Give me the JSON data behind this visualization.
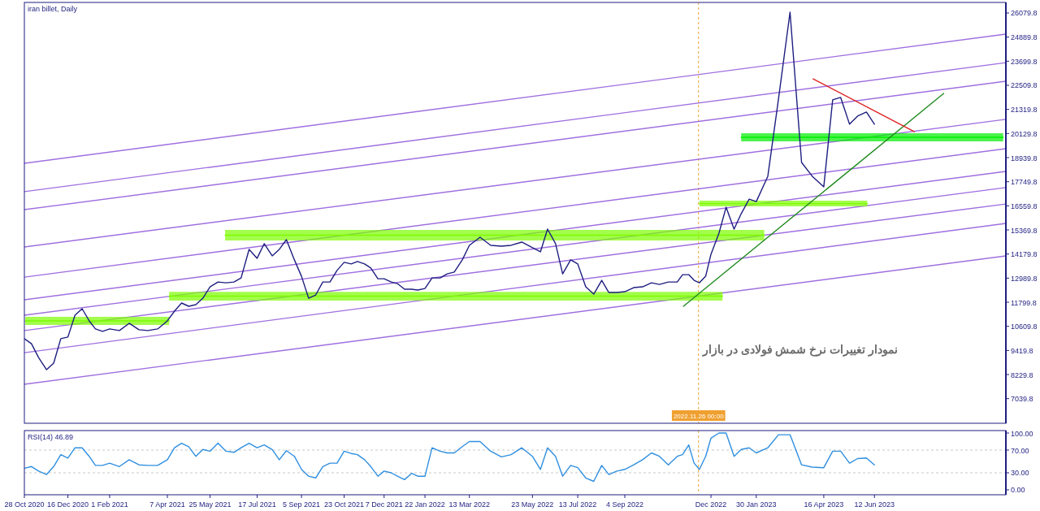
{
  "chart_data": [
    {
      "type": "line",
      "title": "iran billet, Daily",
      "xlim": [
        "2020-10-28",
        "2023-11-07"
      ],
      "ylim": [
        5824,
        26601
      ],
      "tick_labels": "y",
      "yticks": [
        26079.8,
        24889.8,
        23699.8,
        22509.8,
        21319.8,
        20129.8,
        18939.8,
        17749.8,
        16559.8,
        15369.8,
        14179.8,
        12989.8,
        11799.8,
        10609.8,
        9419.8,
        8229.8,
        7039.8
      ],
      "ref_lines": [
        {
          "axis": "x",
          "value": "2022-11-26T00:00",
          "label": "2022.11.26 00:00",
          "color": "#f0a030",
          "line_style": "dashed"
        }
      ],
      "annotations": [
        "نمودار تغییرات نرخ شمش فولادی در بازار"
      ],
      "x": [
        "2020-10-28",
        "2020-11-05",
        "2020-11-13",
        "2020-11-22",
        "2020-11-30",
        "2020-12-08",
        "2020-12-16",
        "2020-12-24",
        "2021-01-01",
        "2021-01-09",
        "2021-01-16",
        "2021-01-24",
        "2021-02-01",
        "2021-02-12",
        "2021-02-23",
        "2021-03-06",
        "2021-03-16",
        "2021-03-27",
        "2021-04-07",
        "2021-04-15",
        "2021-04-23",
        "2021-05-01",
        "2021-05-09",
        "2021-05-17",
        "2021-05-25",
        "2021-06-03",
        "2021-06-12",
        "2021-06-21",
        "2021-06-29",
        "2021-07-08",
        "2021-07-17",
        "2021-07-25",
        "2021-08-03",
        "2021-08-11",
        "2021-08-19",
        "2021-08-28",
        "2021-09-05",
        "2021-09-13",
        "2021-09-21",
        "2021-09-29",
        "2021-10-07",
        "2021-10-15",
        "2021-10-23",
        "2021-10-31",
        "2021-11-07",
        "2021-11-15",
        "2021-11-22",
        "2021-11-30",
        "2021-12-07",
        "2021-12-15",
        "2021-12-22",
        "2021-12-30",
        "2022-01-07",
        "2022-01-14",
        "2022-01-22",
        "2022-01-30",
        "2022-02-08",
        "2022-02-16",
        "2022-02-24",
        "2022-03-05",
        "2022-03-13",
        "2022-03-25",
        "2022-04-06",
        "2022-04-18",
        "2022-04-29",
        "2022-05-11",
        "2022-05-23",
        "2022-06-01",
        "2022-06-09",
        "2022-06-18",
        "2022-06-26",
        "2022-07-05",
        "2022-07-13",
        "2022-07-22",
        "2022-07-31",
        "2022-08-09",
        "2022-08-17",
        "2022-08-26",
        "2022-09-04",
        "2022-09-14",
        "2022-09-24",
        "2022-10-04",
        "2022-10-13",
        "2022-10-23",
        "2022-11-02",
        "2022-11-08",
        "2022-11-15",
        "2022-11-21",
        "2022-11-27",
        "2022-12-04",
        "2022-12-10",
        "2022-12-19",
        "2022-12-27",
        "2023-01-05",
        "2023-01-13",
        "2023-01-22",
        "2023-01-30",
        "2023-02-12",
        "2023-02-24",
        "2023-03-09",
        "2023-03-22",
        "2023-04-03",
        "2023-04-16",
        "2023-04-26",
        "2023-05-05",
        "2023-05-15",
        "2023-05-24",
        "2023-06-03",
        "2023-06-12"
      ],
      "series": [
        {
          "color": "#9f6fdf",
          "x": [
            "2020-10-28",
            "2023-11-07"
          ],
          "values": [
            18660,
            25040
          ]
        },
        {
          "color": "#9f6fdf",
          "x": [
            "2020-10-28",
            "2023-11-07"
          ],
          "values": [
            17260,
            23630
          ]
        },
        {
          "color": "#9f6fdf",
          "x": [
            "2020-10-28",
            "2023-11-07"
          ],
          "values": [
            16370,
            22710
          ]
        },
        {
          "color": "#9f6fdf",
          "x": [
            "2020-10-28",
            "2023-11-07"
          ],
          "values": [
            14530,
            20830
          ]
        },
        {
          "color": "#9f6fdf",
          "x": [
            "2020-10-28",
            "2023-11-07"
          ],
          "values": [
            13040,
            19380
          ]
        },
        {
          "color": "#9f6fdf",
          "x": [
            "2020-10-28",
            "2023-11-07"
          ],
          "values": [
            11920,
            18260
          ]
        },
        {
          "color": "#9f6fdf",
          "x": [
            "2020-10-28",
            "2023-11-07"
          ],
          "values": [
            11160,
            17460
          ]
        },
        {
          "color": "#9f6fdf",
          "x": [
            "2020-10-28",
            "2023-11-07"
          ],
          "values": [
            10400,
            16650
          ]
        },
        {
          "color": "#9f6fdf",
          "x": [
            "2020-10-28",
            "2023-11-07"
          ],
          "values": [
            9310,
            15690
          ]
        },
        {
          "color": "#9f6fdf",
          "x": [
            "2020-10-28",
            "2023-11-07"
          ],
          "values": [
            7750,
            14090
          ]
        },
        {
          "color": "#7cfc00",
          "x": [
            "2020-10-29",
            "2021-04-09"
          ],
          "values": [
            10880,
            10880
          ],
          "lower": [
            10680,
            10680
          ],
          "upper": [
            11080,
            11080
          ]
        },
        {
          "color": "#7cfc00",
          "x": [
            "2021-04-09",
            "2022-12-23"
          ],
          "values": [
            12100,
            12100
          ],
          "lower": [
            11880,
            11880
          ],
          "upper": [
            12310,
            12310
          ]
        },
        {
          "color": "#7cfc00",
          "x": [
            "2021-06-11",
            "2023-02-08"
          ],
          "values": [
            15110,
            15110
          ],
          "lower": [
            14850,
            14850
          ],
          "upper": [
            15370,
            15370
          ]
        },
        {
          "color": "#7cfc00",
          "x": [
            "2022-11-27",
            "2023-06-04"
          ],
          "values": [
            16670,
            16670
          ],
          "lower": [
            16530,
            16530
          ],
          "upper": [
            16810,
            16810
          ]
        },
        {
          "color": "#00ee00",
          "x": [
            "2023-01-13",
            "2023-11-04"
          ],
          "values": [
            19940,
            19940
          ],
          "lower": [
            19740,
            19740
          ],
          "upper": [
            20140,
            20140
          ]
        },
        {
          "color": "#1e1e80",
          "values": [
            10000,
            9750,
            9070,
            8470,
            8790,
            10000,
            10080,
            11160,
            11480,
            10880,
            10480,
            10360,
            10480,
            10400,
            10760,
            10440,
            10400,
            10480,
            10880,
            11360,
            11760,
            11600,
            11680,
            12000,
            12560,
            12800,
            12760,
            12800,
            13000,
            14410,
            13970,
            14690,
            14090,
            14410,
            14890,
            13890,
            13080,
            12000,
            12160,
            12800,
            12800,
            13370,
            13770,
            13690,
            13810,
            13690,
            13490,
            12960,
            12960,
            12800,
            12720,
            12440,
            12440,
            12400,
            12480,
            13000,
            13000,
            13200,
            13290,
            13890,
            14610,
            15010,
            14610,
            14570,
            14610,
            14770,
            14490,
            14290,
            15410,
            14690,
            13200,
            13890,
            13690,
            12560,
            12200,
            12880,
            12280,
            12280,
            12320,
            12520,
            12560,
            12760,
            12680,
            12800,
            12800,
            13160,
            13160,
            12880,
            12760,
            13080,
            14170,
            15210,
            16490,
            15410,
            16170,
            16890,
            16770,
            18020,
            21830,
            26120,
            18700,
            18020,
            17500,
            21790,
            21910,
            20590,
            20990,
            21190,
            20590
          ]
        },
        {
          "color": "#228b22",
          "x": [
            "2022-11-09",
            "2023-08-29"
          ],
          "values": [
            11600,
            22110
          ]
        },
        {
          "color": "#dd2222",
          "x": [
            "2023-04-04",
            "2023-07-27"
          ],
          "values": [
            22830,
            20220
          ]
        }
      ]
    },
    {
      "type": "line",
      "title": "RSI(14) 46.89",
      "xlim": [
        "2020-10-28",
        "2023-11-07"
      ],
      "ylim": [
        -8.6,
        104.3
      ],
      "yticks": [
        {
          "value": 100,
          "label": "100.00"
        },
        {
          "value": 70,
          "label": "70.00"
        },
        {
          "value": 30,
          "label": "30.00"
        },
        {
          "value": 0,
          "label": "0.00"
        }
      ],
      "xticks": [
        {
          "value": "2020-10-28",
          "label": "28 Oct 2020"
        },
        {
          "value": "2020-12-16",
          "label": "16 Dec 2020"
        },
        {
          "value": "2021-02-01",
          "label": "1 Feb 2021"
        },
        {
          "value": "2021-04-07",
          "label": "7 Apr 2021"
        },
        {
          "value": "2021-05-25",
          "label": "25 May 2021"
        },
        {
          "value": "2021-07-17",
          "label": "17 Jul 2021"
        },
        {
          "value": "2021-09-05",
          "label": "5 Sep 2021"
        },
        {
          "value": "2021-10-23",
          "label": "23 Oct 2021"
        },
        {
          "value": "2021-12-07",
          "label": "7 Dec 2021"
        },
        {
          "value": "2022-01-22",
          "label": "22 Jan 2022"
        },
        {
          "value": "2022-03-13",
          "label": "13 Mar 2022"
        },
        {
          "value": "2022-05-23",
          "label": "23 May 2022"
        },
        {
          "value": "2022-07-13",
          "label": "13 Jul 2022"
        },
        {
          "value": "2022-09-04",
          "label": "4 Sep 2022"
        },
        {
          "value": "2022-12-10",
          "label": "Dec 2022"
        },
        {
          "value": "2023-01-30",
          "label": "30 Jan 2023"
        },
        {
          "value": "2023-04-16",
          "label": "16 Apr 2023"
        },
        {
          "value": "2023-06-12",
          "label": "12 Jun 2023"
        }
      ],
      "ref_lines": [
        {
          "axis": "y",
          "value": 70,
          "color": "#c8c8c8",
          "line_style": "dashed"
        },
        {
          "axis": "y",
          "value": 30,
          "color": "#c8c8c8",
          "line_style": "dashed"
        },
        {
          "axis": "x",
          "value": "2022-11-26T00:00",
          "color": "#f0a030",
          "line_style": "dashed"
        }
      ],
      "x": [
        "2020-10-28",
        "2020-11-05",
        "2020-11-13",
        "2020-11-22",
        "2020-11-30",
        "2020-12-08",
        "2020-12-16",
        "2020-12-24",
        "2021-01-01",
        "2021-01-09",
        "2021-01-16",
        "2021-01-24",
        "2021-02-01",
        "2021-02-12",
        "2021-02-23",
        "2021-03-06",
        "2021-03-16",
        "2021-03-27",
        "2021-04-07",
        "2021-04-15",
        "2021-04-23",
        "2021-05-01",
        "2021-05-09",
        "2021-05-17",
        "2021-05-25",
        "2021-06-03",
        "2021-06-12",
        "2021-06-21",
        "2021-06-29",
        "2021-07-08",
        "2021-07-17",
        "2021-07-25",
        "2021-08-03",
        "2021-08-11",
        "2021-08-19",
        "2021-08-28",
        "2021-09-05",
        "2021-09-13",
        "2021-09-21",
        "2021-09-29",
        "2021-10-07",
        "2021-10-15",
        "2021-10-23",
        "2021-10-31",
        "2021-11-07",
        "2021-11-15",
        "2021-11-22",
        "2021-11-30",
        "2021-12-07",
        "2021-12-15",
        "2021-12-22",
        "2021-12-30",
        "2022-01-07",
        "2022-01-14",
        "2022-01-22",
        "2022-01-30",
        "2022-02-08",
        "2022-02-16",
        "2022-02-24",
        "2022-03-05",
        "2022-03-13",
        "2022-03-25",
        "2022-04-06",
        "2022-04-18",
        "2022-04-29",
        "2022-05-11",
        "2022-05-23",
        "2022-06-01",
        "2022-06-09",
        "2022-06-18",
        "2022-06-26",
        "2022-07-05",
        "2022-07-13",
        "2022-07-22",
        "2022-07-31",
        "2022-08-09",
        "2022-08-17",
        "2022-08-26",
        "2022-09-04",
        "2022-09-14",
        "2022-09-24",
        "2022-10-04",
        "2022-10-13",
        "2022-10-23",
        "2022-11-02",
        "2022-11-08",
        "2022-11-15",
        "2022-11-21",
        "2022-11-27",
        "2022-12-04",
        "2022-12-10",
        "2022-12-19",
        "2022-12-27",
        "2023-01-05",
        "2023-01-13",
        "2023-01-22",
        "2023-01-30",
        "2023-02-12",
        "2023-02-24",
        "2023-03-09",
        "2023-03-22",
        "2023-04-03",
        "2023-04-16",
        "2023-04-26",
        "2023-05-05",
        "2023-05-15",
        "2023-05-24",
        "2023-06-03",
        "2023-06-12"
      ],
      "series": [
        {
          "color": "#2f8fe0",
          "values": [
            38,
            41,
            33,
            27,
            41,
            62,
            56,
            74,
            74,
            59,
            43,
            43,
            47,
            41,
            53,
            44,
            43,
            43,
            53,
            74,
            82,
            76,
            59,
            71,
            68,
            82,
            68,
            66,
            74,
            82,
            74,
            79,
            71,
            53,
            69,
            59,
            36,
            24,
            21,
            41,
            47,
            47,
            68,
            64,
            62,
            53,
            41,
            24,
            33,
            30,
            24,
            18,
            29,
            24,
            24,
            74,
            68,
            65,
            65,
            76,
            85,
            85,
            68,
            58,
            62,
            74,
            59,
            36,
            74,
            59,
            24,
            43,
            39,
            21,
            15,
            43,
            27,
            33,
            36,
            44,
            53,
            65,
            59,
            44,
            59,
            62,
            79,
            47,
            36,
            59,
            91,
            100,
            100,
            59,
            71,
            74,
            65,
            74,
            97,
            97,
            44,
            40,
            39,
            68,
            68,
            47,
            55,
            56,
            44
          ]
        }
      ]
    }
  ]
}
